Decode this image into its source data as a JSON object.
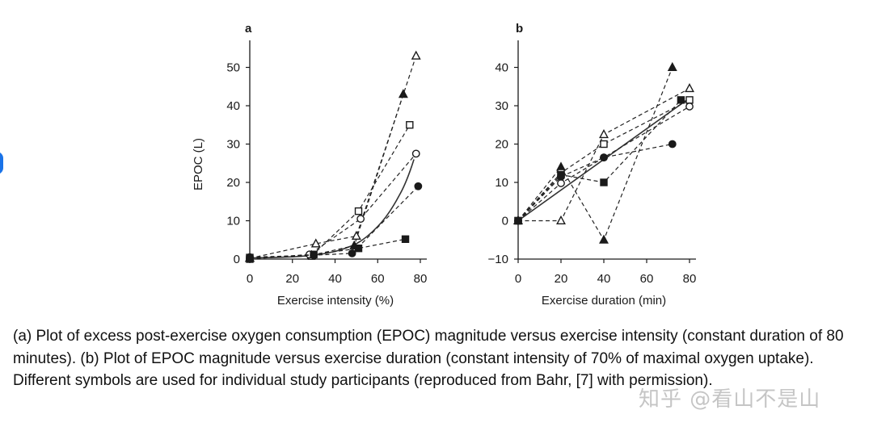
{
  "chart_data": [
    {
      "type": "line",
      "panel_label": "a",
      "xlabel": "Exercise intensity (%)",
      "ylabel": "EPOC (L)",
      "xlim": [
        0,
        80
      ],
      "ylim": [
        0,
        52
      ],
      "xticks": [
        0,
        20,
        40,
        60,
        80
      ],
      "yticks": [
        0,
        10,
        20,
        30,
        40,
        50
      ],
      "grid": false,
      "series": [
        {
          "marker": "triangle-filled",
          "points": [
            [
              0,
              0.3
            ],
            [
              29,
              1.0
            ],
            [
              49,
              3.5
            ],
            [
              72,
              43
            ]
          ]
        },
        {
          "marker": "triangle-open",
          "points": [
            [
              0,
              0.2
            ],
            [
              31,
              4.0
            ],
            [
              50,
              6.0
            ],
            [
              78,
              53
            ]
          ]
        },
        {
          "marker": "square-open",
          "points": [
            [
              0,
              0.4
            ],
            [
              29,
              0.8
            ],
            [
              51,
              12.5
            ],
            [
              75,
              35
            ]
          ]
        },
        {
          "marker": "circle-open",
          "points": [
            [
              0,
              0.1
            ],
            [
              28,
              1.2
            ],
            [
              52,
              10.5
            ],
            [
              78,
              27.5
            ]
          ]
        },
        {
          "marker": "circle-filled",
          "points": [
            [
              0,
              0.5
            ],
            [
              30,
              1.0
            ],
            [
              48,
              1.5
            ],
            [
              79,
              19
            ]
          ]
        },
        {
          "marker": "square-filled",
          "points": [
            [
              0,
              0.0
            ],
            [
              30,
              1.2
            ],
            [
              51,
              2.8
            ],
            [
              73,
              5.2
            ]
          ]
        }
      ],
      "fit_curve": {
        "type": "exponential",
        "points": [
          [
            0,
            0.3
          ],
          [
            10,
            0.4
          ],
          [
            20,
            0.6
          ],
          [
            30,
            1.0
          ],
          [
            40,
            2.0
          ],
          [
            50,
            4.0
          ],
          [
            60,
            8.5
          ],
          [
            70,
            16.5
          ],
          [
            77,
            26
          ]
        ]
      }
    },
    {
      "type": "line",
      "panel_label": "b",
      "xlabel": "Exercise duration (min)",
      "ylabel": "",
      "xlim": [
        0,
        80
      ],
      "ylim": [
        -10,
        42
      ],
      "xticks": [
        0,
        20,
        40,
        60,
        80
      ],
      "yticks": [
        -10,
        0,
        10,
        20,
        30,
        40
      ],
      "grid": false,
      "series": [
        {
          "marker": "triangle-filled",
          "points": [
            [
              0,
              0
            ],
            [
              20,
              14
            ],
            [
              40,
              -5
            ],
            [
              72,
              40
            ]
          ]
        },
        {
          "marker": "triangle-open",
          "points": [
            [
              0,
              0
            ],
            [
              20,
              0
            ],
            [
              40,
              22.5
            ],
            [
              80,
              34.5
            ]
          ]
        },
        {
          "marker": "square-open",
          "points": [
            [
              0,
              0
            ],
            [
              20,
              12.5
            ],
            [
              40,
              20
            ],
            [
              80,
              31.5
            ]
          ]
        },
        {
          "marker": "circle-open",
          "points": [
            [
              0,
              0
            ],
            [
              20,
              9.8
            ],
            [
              40,
              16.5
            ],
            [
              80,
              29.8
            ]
          ]
        },
        {
          "marker": "circle-filled",
          "points": [
            [
              0,
              0
            ],
            [
              20,
              11.5
            ],
            [
              40,
              16.5
            ],
            [
              72,
              20
            ]
          ]
        },
        {
          "marker": "square-filled",
          "points": [
            [
              0,
              0
            ],
            [
              20,
              12
            ],
            [
              40,
              10
            ],
            [
              76,
              31.5
            ]
          ]
        }
      ],
      "fit_line": {
        "type": "linear",
        "points": [
          [
            0,
            0
          ],
          [
            80,
            32
          ]
        ]
      }
    }
  ],
  "caption": "(a) Plot of excess post-exercise oxygen consumption (EPOC) magnitude versus exercise intensity (constant duration of 80 minutes). (b) Plot of EPOC magnitude versus exercise duration (constant intensity of 70% of maximal oxygen uptake). Different symbols are used for individual study participants (reproduced from Bahr, [7] with permission).",
  "watermark": "知乎 @看山不是山",
  "colors": {
    "ink": "#1a1a1a",
    "accent": "#1a73e8",
    "background": "#ffffff"
  }
}
